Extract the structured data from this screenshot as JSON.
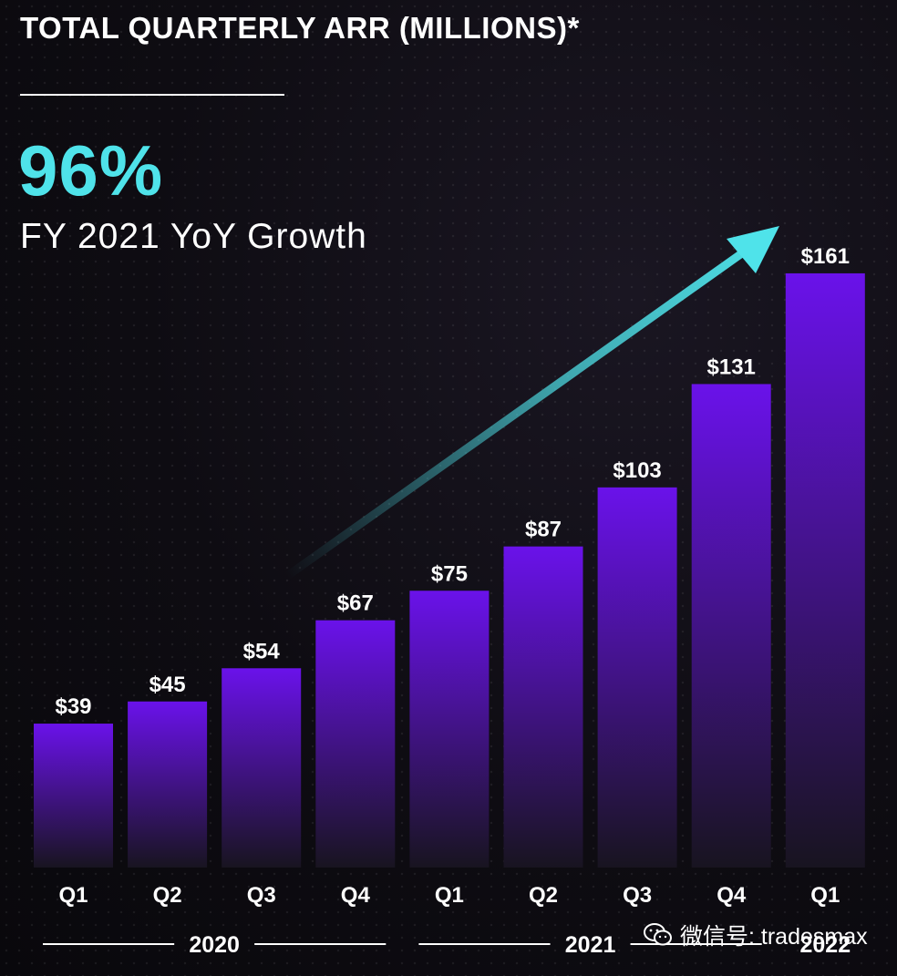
{
  "header": {
    "title": "TOTAL QUARTERLY ARR (MILLIONS)*",
    "kpi_value": "96%",
    "kpi_label": "FY 2021 YoY Growth"
  },
  "watermark": {
    "text": "微信号: tradesmax"
  },
  "colors": {
    "accent": "#4fe3ea",
    "bar_top": "#6a12ea",
    "bar_bottom": "#1a1622",
    "text": "#ffffff"
  },
  "chart_data": {
    "type": "bar",
    "title": "TOTAL QUARTERLY ARR (MILLIONS)*",
    "categories": [
      "Q1",
      "Q2",
      "Q3",
      "Q4",
      "Q1",
      "Q2",
      "Q3",
      "Q4",
      "Q1"
    ],
    "values": [
      39,
      45,
      54,
      67,
      75,
      87,
      103,
      131,
      161
    ],
    "value_labels": [
      "$39",
      "$45",
      "$54",
      "$67",
      "$75",
      "$87",
      "$103",
      "$131",
      "$161"
    ],
    "groups": [
      {
        "label": "2020",
        "start": 0,
        "end": 3
      },
      {
        "label": "2021",
        "start": 4,
        "end": 7
      },
      {
        "label": "2022",
        "start": 8,
        "end": 8
      }
    ],
    "xlabel": "",
    "ylabel": "",
    "ylim": [
      0,
      175
    ],
    "grid": false
  }
}
